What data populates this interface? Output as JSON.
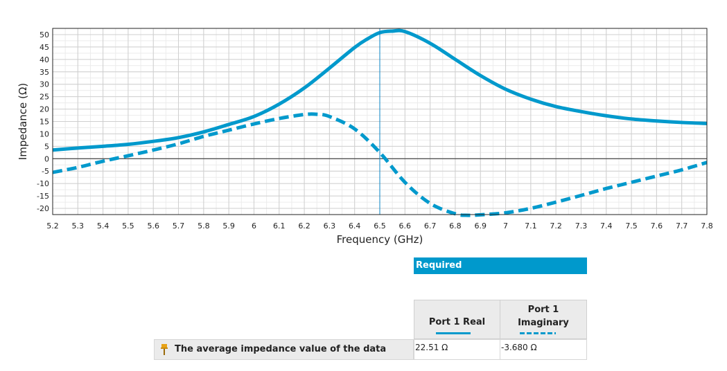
{
  "chart_data": {
    "type": "line",
    "xlabel": "Frequency (GHz)",
    "ylabel": "Impedance (Ω)",
    "xlim": [
      5.2,
      7.8
    ],
    "ylim": [
      -22.5,
      52.5
    ],
    "x_ticks": [
      "5.2",
      "5.3",
      "5.4",
      "5.5",
      "5.6",
      "5.7",
      "5.8",
      "5.9",
      "6",
      "6.1",
      "6.2",
      "6.3",
      "6.4",
      "6.5",
      "6.6",
      "6.7",
      "6.8",
      "6.9",
      "7",
      "7.1",
      "7.2",
      "7.3",
      "7.4",
      "7.5",
      "7.6",
      "7.7",
      "7.8"
    ],
    "y_ticks": [
      "50",
      "45",
      "40",
      "35",
      "30",
      "25",
      "20",
      "15",
      "10",
      "5",
      "0",
      "-5",
      "-10",
      "-15",
      "-20"
    ],
    "grid": true,
    "marker_x": 6.5,
    "series": [
      {
        "name": "Port 1 Real",
        "style": "solid",
        "color": "#0099cc",
        "x": [
          5.2,
          5.3,
          5.4,
          5.5,
          5.6,
          5.7,
          5.8,
          5.9,
          6.0,
          6.1,
          6.2,
          6.3,
          6.4,
          6.45,
          6.5,
          6.55,
          6.6,
          6.7,
          6.8,
          6.9,
          7.0,
          7.1,
          7.2,
          7.3,
          7.4,
          7.5,
          7.6,
          7.7,
          7.8
        ],
        "y": [
          3.5,
          4.3,
          5.0,
          5.8,
          7.0,
          8.5,
          10.8,
          13.8,
          17.0,
          22.0,
          28.5,
          36.5,
          44.8,
          48.2,
          50.8,
          51.4,
          51.2,
          46.5,
          40.0,
          33.5,
          28.0,
          24.0,
          21.0,
          19.0,
          17.3,
          16.0,
          15.2,
          14.6,
          14.2
        ]
      },
      {
        "name": "Port 1 Imaginary",
        "style": "dashed",
        "color": "#0099cc",
        "x": [
          5.2,
          5.3,
          5.4,
          5.5,
          5.6,
          5.7,
          5.8,
          5.9,
          6.0,
          6.1,
          6.2,
          6.25,
          6.3,
          6.4,
          6.5,
          6.6,
          6.7,
          6.8,
          6.85,
          6.9,
          7.0,
          7.1,
          7.2,
          7.3,
          7.4,
          7.5,
          7.6,
          7.7,
          7.8
        ],
        "y": [
          -5.5,
          -3.5,
          -1.0,
          1.2,
          3.5,
          6.0,
          9.0,
          11.5,
          14.0,
          16.2,
          17.8,
          17.9,
          17.0,
          12.0,
          2.5,
          -9.5,
          -18.0,
          -22.2,
          -22.8,
          -22.6,
          -21.8,
          -20.0,
          -17.5,
          -14.8,
          -12.0,
          -9.5,
          -7.0,
          -4.5,
          -1.5
        ]
      }
    ]
  },
  "required_label": "Required",
  "table": {
    "header_real": "Port 1 Real",
    "header_imag_line1": "Port 1",
    "header_imag_line2": "Imaginary",
    "row_label": "The average impedance value of the data",
    "value_real": "22.51 Ω",
    "value_imag": "-3.680 Ω",
    "pin_icon": "pin-icon",
    "pin_color": "#e8a317"
  }
}
